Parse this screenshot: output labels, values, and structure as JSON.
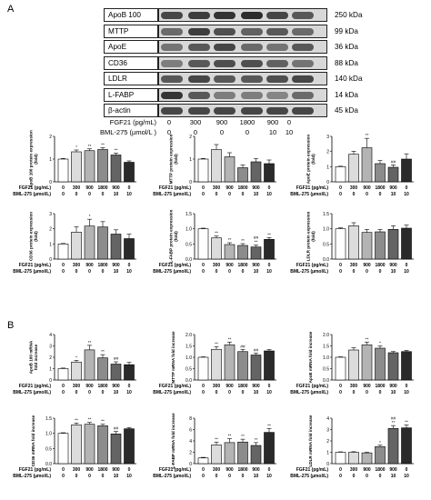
{
  "panel_labels": {
    "a": "A",
    "b": "B"
  },
  "blot": {
    "proteins": [
      {
        "name": "ApoB 100",
        "kda": "250 kDa",
        "intensity": [
          0.8,
          0.85,
          0.9,
          0.95,
          0.8,
          0.7
        ]
      },
      {
        "name": "MTTP",
        "kda": "99 kDa",
        "intensity": [
          0.6,
          0.85,
          0.75,
          0.65,
          0.7,
          0.6
        ]
      },
      {
        "name": "ApoE",
        "kda": "36 kDa",
        "intensity": [
          0.55,
          0.7,
          0.8,
          0.6,
          0.55,
          0.7
        ]
      },
      {
        "name": "CD36",
        "kda": "88 kDa",
        "intensity": [
          0.5,
          0.7,
          0.75,
          0.75,
          0.65,
          0.55
        ]
      },
      {
        "name": "LDLR",
        "kda": "140 kDa",
        "intensity": [
          0.7,
          0.8,
          0.7,
          0.7,
          0.75,
          0.8
        ]
      },
      {
        "name": "L-FABP",
        "kda": "14 kDa",
        "intensity": [
          0.9,
          0.7,
          0.5,
          0.5,
          0.45,
          0.6
        ]
      },
      {
        "name": "β-actin",
        "kda": "45 kDa",
        "intensity": [
          0.8,
          0.8,
          0.8,
          0.8,
          0.8,
          0.8
        ]
      }
    ],
    "fgf21_label": "FGF21 (pg/mL)",
    "bml_label": "BML-275 (µmol/L )",
    "fgf21_values": [
      "0",
      "300",
      "900",
      "1800",
      "900",
      "0"
    ],
    "bml_values": [
      "0",
      "0",
      "0",
      "0",
      "10",
      "10"
    ]
  },
  "axis_rows": {
    "fgf21_label": "FGF21 (pg/mL)",
    "bml_label": "BML-275 (µmol/L)",
    "fgf21_values": [
      "0",
      "300",
      "900",
      "1800",
      "900",
      "0"
    ],
    "bml_values": [
      "0",
      "0",
      "0",
      "0",
      "10",
      "10"
    ]
  },
  "bar_colors": [
    "#ffffff",
    "#dcdcdc",
    "#b4b4b4",
    "#8c8c8c",
    "#646464",
    "#2a2a2a"
  ],
  "chart_data": [
    {
      "type": "bar",
      "panel": "A",
      "ylabel": "ApoB 100 protein expression\n(fold)",
      "yticks": [
        "0",
        "1",
        "2"
      ],
      "ylim": [
        0,
        2
      ],
      "values": [
        1.0,
        1.32,
        1.37,
        1.42,
        1.18,
        0.86
      ],
      "errors": [
        0.03,
        0.08,
        0.08,
        0.08,
        0.08,
        0.06
      ],
      "marks": [
        "",
        "*",
        "**",
        "**",
        "**",
        ""
      ]
    },
    {
      "type": "bar",
      "panel": "A",
      "ylabel": "MTTP protein expression\n(fold)",
      "yticks": [
        "0",
        "1",
        "2"
      ],
      "ylim": [
        0,
        2
      ],
      "values": [
        1.0,
        1.42,
        1.1,
        0.62,
        0.88,
        0.8
      ],
      "errors": [
        0.03,
        0.22,
        0.18,
        0.12,
        0.14,
        0.16
      ],
      "marks": [
        "",
        "",
        "",
        "",
        "",
        ""
      ]
    },
    {
      "type": "bar",
      "panel": "A",
      "ylabel": "ApoE protein expression\n(fold)",
      "yticks": [
        "0",
        "1",
        "2",
        "3"
      ],
      "ylim": [
        0,
        3
      ],
      "values": [
        1.0,
        1.82,
        2.25,
        1.2,
        0.96,
        1.5
      ],
      "errors": [
        0.03,
        0.2,
        0.62,
        0.2,
        0.16,
        0.35
      ],
      "marks": [
        "",
        "",
        "**",
        "",
        "##",
        ""
      ]
    },
    {
      "type": "bar",
      "panel": "A",
      "ylabel": "CD36 protein expression\n(fold)",
      "yticks": [
        "0",
        "1",
        "2",
        "3"
      ],
      "ylim": [
        0,
        3
      ],
      "values": [
        1.0,
        1.78,
        2.18,
        2.12,
        1.65,
        1.35
      ],
      "errors": [
        0.03,
        0.35,
        0.45,
        0.35,
        0.28,
        0.3
      ],
      "marks": [
        "",
        "",
        "*",
        "",
        "",
        ""
      ]
    },
    {
      "type": "bar",
      "panel": "A",
      "ylabel": "L-FABP protein expression\n(fold)",
      "yticks": [
        "0.0",
        "0.5",
        "1.0",
        "1.5"
      ],
      "ylim": [
        0,
        1.5
      ],
      "values": [
        1.0,
        0.7,
        0.48,
        0.45,
        0.4,
        0.65
      ],
      "errors": [
        0.02,
        0.06,
        0.06,
        0.06,
        0.06,
        0.06
      ],
      "marks": [
        "",
        "**",
        "**",
        "**",
        "##\n**",
        "**"
      ]
    },
    {
      "type": "bar",
      "panel": "A",
      "ylabel": "LDLR protein expression\n(fold)",
      "yticks": [
        "0.0",
        "0.5",
        "1.0",
        "1.5"
      ],
      "ylim": [
        0,
        1.5
      ],
      "values": [
        1.0,
        1.1,
        0.88,
        0.9,
        0.98,
        1.02
      ],
      "errors": [
        0.03,
        0.1,
        0.1,
        0.08,
        0.12,
        0.1
      ],
      "marks": [
        "",
        "",
        "",
        "",
        "",
        ""
      ]
    },
    {
      "type": "bar",
      "panel": "B",
      "ylabel": "ApoB 100 mRNA\nfold increase",
      "yticks": [
        "0",
        "1",
        "2",
        "3",
        "4"
      ],
      "ylim": [
        0,
        4
      ],
      "values": [
        1.0,
        1.58,
        2.65,
        1.95,
        1.4,
        1.35
      ],
      "errors": [
        0.05,
        0.15,
        0.4,
        0.28,
        0.2,
        0.2
      ],
      "marks": [
        "",
        "*",
        "**",
        "**",
        "##",
        ""
      ]
    },
    {
      "type": "bar",
      "panel": "B",
      "ylabel": "MTTP mRNA fold increase",
      "yticks": [
        "0.0",
        "0.5",
        "1.0",
        "1.5",
        "2.0"
      ],
      "ylim": [
        0,
        2
      ],
      "values": [
        1.0,
        1.35,
        1.55,
        1.25,
        1.1,
        1.28
      ],
      "errors": [
        0.02,
        0.12,
        0.12,
        0.1,
        0.08,
        0.06
      ],
      "marks": [
        "",
        "**",
        "**",
        "##",
        "##",
        ""
      ]
    },
    {
      "type": "bar",
      "panel": "B",
      "ylabel": "ApoE mRNA fold increase",
      "yticks": [
        "0.0",
        "0.5",
        "1.0",
        "1.5",
        "2.0"
      ],
      "ylim": [
        0,
        2
      ],
      "values": [
        1.0,
        1.32,
        1.55,
        1.4,
        1.2,
        1.25
      ],
      "errors": [
        0.02,
        0.1,
        0.12,
        0.1,
        0.05,
        0.05
      ],
      "marks": [
        "",
        "",
        "**",
        "*",
        "",
        ""
      ]
    },
    {
      "type": "bar",
      "panel": "B",
      "ylabel": "CD36 mRNA fold increase",
      "yticks": [
        "0.0",
        "0.5",
        "1.0",
        "1.5"
      ],
      "ylim": [
        0,
        1.5
      ],
      "values": [
        1.0,
        1.28,
        1.3,
        1.25,
        0.98,
        1.15
      ],
      "errors": [
        0.02,
        0.06,
        0.06,
        0.05,
        0.08,
        0.04
      ],
      "marks": [
        "",
        "**",
        "**",
        "**",
        "##",
        ""
      ]
    },
    {
      "type": "bar",
      "panel": "B",
      "ylabel": "L-FABP mRNA fold increase",
      "yticks": [
        "0",
        "2",
        "4",
        "6",
        "8"
      ],
      "ylim": [
        0,
        8
      ],
      "values": [
        1.0,
        3.3,
        3.7,
        3.8,
        3.2,
        5.5
      ],
      "errors": [
        0.1,
        0.5,
        0.7,
        0.5,
        0.5,
        0.7
      ],
      "marks": [
        "",
        "**",
        "**",
        "**",
        "**",
        "**"
      ]
    },
    {
      "type": "bar",
      "panel": "B",
      "ylabel": "LDLR mRNA fold increase",
      "yticks": [
        "0",
        "1",
        "2",
        "3",
        "4"
      ],
      "ylim": [
        0,
        4
      ],
      "values": [
        1.0,
        1.0,
        0.95,
        1.5,
        3.1,
        3.15
      ],
      "errors": [
        0.04,
        0.05,
        0.05,
        0.12,
        0.25,
        0.25
      ],
      "marks": [
        "",
        "",
        "",
        "*",
        "##\n**",
        "**"
      ]
    }
  ]
}
